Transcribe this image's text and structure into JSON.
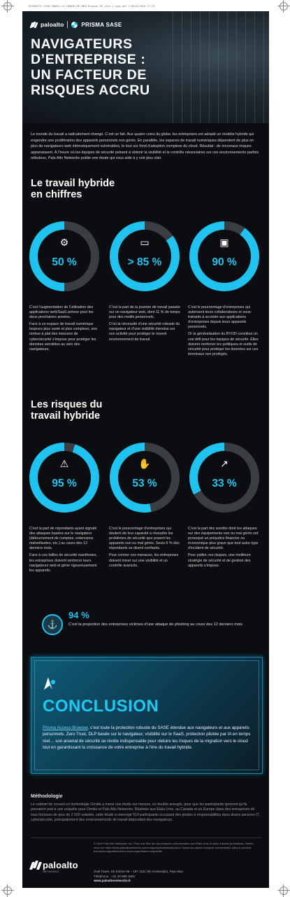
{
  "meta": {
    "file_info": "237938375-r1206-280521-v3-180830-DE-INFO-Browser_MC-v1n1-1 copy.pdf  1  08/01/2024  17:23"
  },
  "brand": {
    "logo_name": "paloalto",
    "logo_sub": "NETWORKS",
    "product": "PRISMA SASE",
    "accent_color": "#20c3ef",
    "background_color": "#0c0d10"
  },
  "hero": {
    "title_line1": "NAVIGATEURS",
    "title_line2": "D’ENTREPRISE :",
    "title_line3": "UN FACTEUR DE",
    "title_line4": "RISQUES ACCRU"
  },
  "intro": {
    "text": "Le monde du travail a radicalement changé. C’est un fait. Aux quatre coins du globe, les entreprises ont adopté un modèle hybride qui engendre une prolifération des appareils personnels non gérés. En parallèle, les espaces de travail numériques dépendent de plus en plus de navigateurs web intrinsèquement vulnérables, le tout sur fond d’adoption complexe du cloud. Résultat : de nouveaux risques apparaissent. À l’heure où les équipes de sécurité peinent à obtenir la visibilité et le contrôle nécessaires sur ces environnements parfois nébuleux, Palo Alto Networks publie une étude qui vous aide à y voir plus clair."
  },
  "section1": {
    "title_line1": "Le travail hybride",
    "title_line2": "en chiffres",
    "stats": [
      {
        "value": "50 %",
        "fraction": 0.5,
        "icon": "gear-network-icon",
        "text1": "C’est l’augmentation de l’utilisation des applications web/SaaS prévue pour les deux prochaines années.",
        "text2": "Face à un espace de travail numérique toujours plus vaste et plus complexe, une remise à plat des mesures de cybersécurité s’impose pour protéger les données sensibles au sein des navigateurs."
      },
      {
        "value": "> 85 %",
        "fraction": 0.85,
        "icon": "browser-window-icon",
        "text1": "C’est la part de la journée de travail passée sur un navigateur web, dont 11 % de temps pour des motifs personnels.",
        "text2": "D’où la nécessité d’une sécurité robuste du navigateur et d’une visibilité étendue sur son activité pour protéger le nouvel environnement de travail."
      },
      {
        "value": "90 %",
        "fraction": 0.9,
        "icon": "devices-icon",
        "text1": "C’est le pourcentage d’entreprises qui autorisent leurs collaborateurs et sous-traitants à accéder aux applications d’entreprises depuis leurs appareils personnels.",
        "text2": "Or la généralisation du BYOD constitue un vrai défi pour les équipes de sécurité. Elles doivent renforcer les politiques et outils de sécurité pour protéger les données sur ces terminaux non protégés."
      }
    ]
  },
  "section2": {
    "title_line1": "Les risques du",
    "title_line2": "travail hybride",
    "stats": [
      {
        "value": "95 %",
        "fraction": 0.95,
        "icon": "warning-window-icon",
        "text1": "C’est la part de répondants ayant signalé des attaques basées sur le navigateur (détournement de comptes, extensions malveillantes, etc.) au cours des 12 derniers mois.",
        "text2": "Face à ces failles de sécurité manifestes, les entreprises doivent renforcer leurs navigateurs web et gérer rigoureusement les appareils."
      },
      {
        "value": "53 %",
        "fraction": 0.53,
        "icon": "thumbs-down-icon",
        "text1": "C’est le pourcentage d’entreprises qui doutent de leur capacité à résoudre les problèmes de sécurité que posent les appareils non ou mal gérés. Seuls 6 % des répondants se disent confiants.",
        "text2": "Pour contrer ces menaces, les entreprises doivent miser sur une visibilité et un contrôle avancés."
      },
      {
        "value": "33 %",
        "fraction": 0.33,
        "icon": "chart-up-icon",
        "text1": "C’est la part des sondés dont les attaques sur des équipements non ou mal gérés ont provoqué un préjudice financier ou économique plus grave que tout autre type d’incident de sécurité.",
        "text2": "Pour pallier ces risques, une meilleure stratégie de sécurité et de gestion des appareils s’impose."
      }
    ]
  },
  "phishing": {
    "value": "94 %",
    "icon": "fishing-hook-icon",
    "text": "C’est la proportion des entreprises victimes d’une attaque de phishing au cours des 12 derniers mois"
  },
  "conclusion": {
    "title": "CONCLUSION",
    "link": "Prisma Access Browser",
    "body": ", c’est toute la protection robuste du SASE étendue aux navigateurs et aux appareils personnels. Zero Trust, DLP basée sur le navigateur, visibilité sur le SaaS, protection pilotée par IA en temps réel… son arsenal de sécurité se révèle indispensable pour réduire les risques de la migration vers le cloud tout en garantissant la croissance de votre entreprise à l’ère du travail hybride."
  },
  "methodology": {
    "title": "Méthodologie",
    "text": "Le cabinet de conseil en technologie Omdia a mené une étude sur mesure, en double aveugle, pour que les participants ignorent qu’ils prenaient part à une enquête pour Omdia et Palo Alto Networks. Réalisée aux États-Unis, au Canada et en Europe dans des entreprises de tous horizons de plus de 2 500 salariés, cette étude a interrogé 514 participants occupant des postes à responsabilités dans divers services IT, cybersécurité, principalement des environnements de travail dépendant des navigateurs."
  },
  "footer": {
    "legal": "© 2024 Palo Alto Networks, Inc. Pour une liste de nos marques commerciales aux États-Unis et dans d’autres juridictions, rendez-vous sur https://www.paloaltonetworks.com/company/trademarks.html. Toutes les autres marques mentionnées dans le présent document appartiennent à leurs propriétaires respectifs.",
    "address": "Oval Tower, De Entree 99 – 197 1101 HE Amsterdam, Pays-Bas",
    "phone": "Téléphone : +31 20 888 1883",
    "website": "www.paloaltonetworks.fr"
  }
}
